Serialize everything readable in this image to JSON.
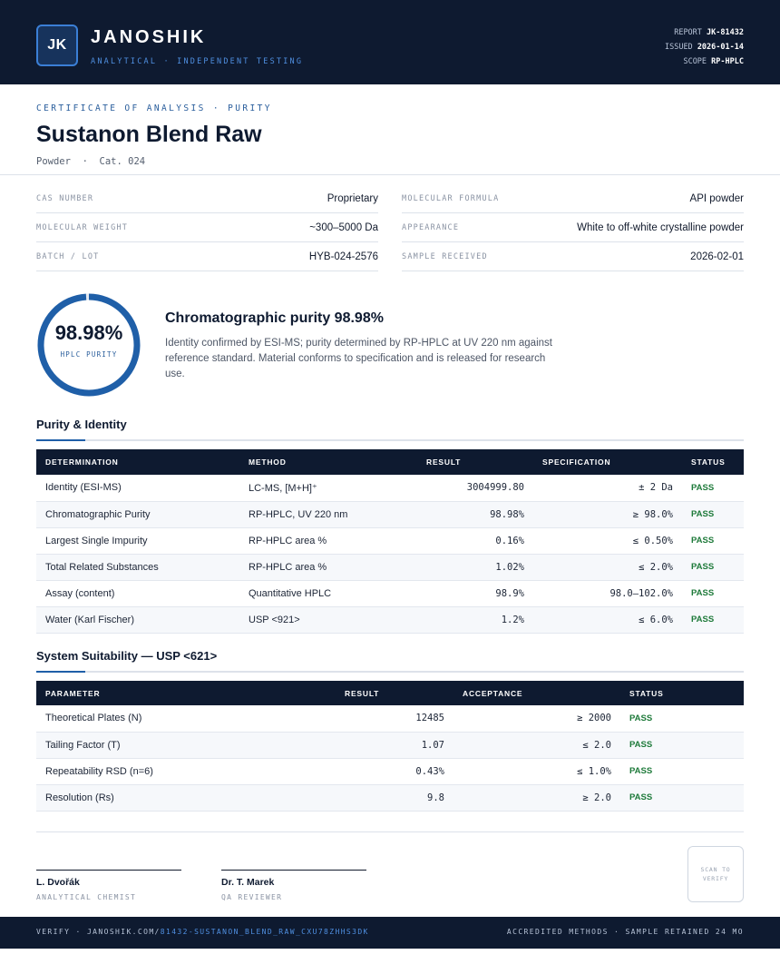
{
  "header": {
    "logo_initials": "JK",
    "brand": "JANOSHIK",
    "tagline": "ANALYTICAL · INDEPENDENT TESTING",
    "meta": [
      {
        "label": "REPORT",
        "value": "JK-81432"
      },
      {
        "label": "ISSUED",
        "value": "2026-01-14"
      },
      {
        "label": "SCOPE",
        "value": "RP-HPLC"
      }
    ]
  },
  "document": {
    "kicker": "CERTIFICATE OF ANALYSIS · PURITY",
    "title": "Sustanon Blend Raw",
    "subtitle": "Powder  ·  Cat. 024"
  },
  "info": {
    "left": [
      {
        "key": "CAS NUMBER",
        "value": "Proprietary"
      },
      {
        "key": "MOLECULAR WEIGHT",
        "value": "~300–5000 Da"
      },
      {
        "key": "BATCH / LOT",
        "value": "HYB-024-2576"
      }
    ],
    "right": [
      {
        "key": "MOLECULAR FORMULA",
        "value": "API powder"
      },
      {
        "key": "APPEARANCE",
        "value": "White to off-white crystalline powder"
      },
      {
        "key": "SAMPLE RECEIVED",
        "value": "2026-02-01"
      }
    ]
  },
  "summary": {
    "gauge_value": "98.98%",
    "gauge_label": "HPLC PURITY",
    "gauge_fraction": 0.9898,
    "title": "Chromatographic purity 98.98%",
    "text": "Identity confirmed by ESI-MS; purity determined by RP-HPLC at UV 220 nm against reference standard. Material conforms to specification and is released for research use."
  },
  "purity_table": {
    "section_title": "Purity & Identity",
    "headers": [
      "DETERMINATION",
      "METHOD",
      "RESULT",
      "SPECIFICATION",
      "STATUS"
    ],
    "rows": [
      [
        "Identity (ESI-MS)",
        "LC-MS, [M+H]⁺",
        "3004999.80",
        "± 2 Da",
        "PASS"
      ],
      [
        "Chromatographic Purity",
        "RP-HPLC, UV 220 nm",
        "98.98%",
        "≥ 98.0%",
        "PASS"
      ],
      [
        "Largest Single Impurity",
        "RP-HPLC area %",
        "0.16%",
        "≤ 0.50%",
        "PASS"
      ],
      [
        "Total Related Substances",
        "RP-HPLC area %",
        "1.02%",
        "≤ 2.0%",
        "PASS"
      ],
      [
        "Assay (content)",
        "Quantitative HPLC",
        "98.9%",
        "98.0–102.0%",
        "PASS"
      ],
      [
        "Water (Karl Fischer)",
        "USP <921>",
        "1.2%",
        "≤ 6.0%",
        "PASS"
      ]
    ]
  },
  "suitability_table": {
    "section_title": "System Suitability — USP <621>",
    "headers": [
      "PARAMETER",
      "RESULT",
      "ACCEPTANCE",
      "STATUS"
    ],
    "rows": [
      [
        "Theoretical Plates (N)",
        "12485",
        "≥ 2000",
        "PASS"
      ],
      [
        "Tailing Factor (T)",
        "1.07",
        "≤ 2.0",
        "PASS"
      ],
      [
        "Repeatability RSD (n=6)",
        "0.43%",
        "≤ 1.0%",
        "PASS"
      ],
      [
        "Resolution (Rs)",
        "9.8",
        "≥ 2.0",
        "PASS"
      ]
    ]
  },
  "signatures": [
    {
      "name": "L. Dvořák",
      "role": "ANALYTICAL CHEMIST"
    },
    {
      "name": "Dr. T. Marek",
      "role": "QA REVIEWER"
    }
  ],
  "qr_text": "SCAN TO VERIFY",
  "footer": {
    "verify_prefix": "VERIFY · JANOSHIK.COM/",
    "verify_link": "81432-SUSTANON_BLEND_RAW_CXU78ZHHS3DK",
    "right": "ACCREDITED METHODS · SAMPLE RETAINED 24 MO"
  },
  "colors": {
    "navy": "#0e1a30",
    "accent": "#1f5fa8",
    "pass": "#1e7a3a"
  }
}
